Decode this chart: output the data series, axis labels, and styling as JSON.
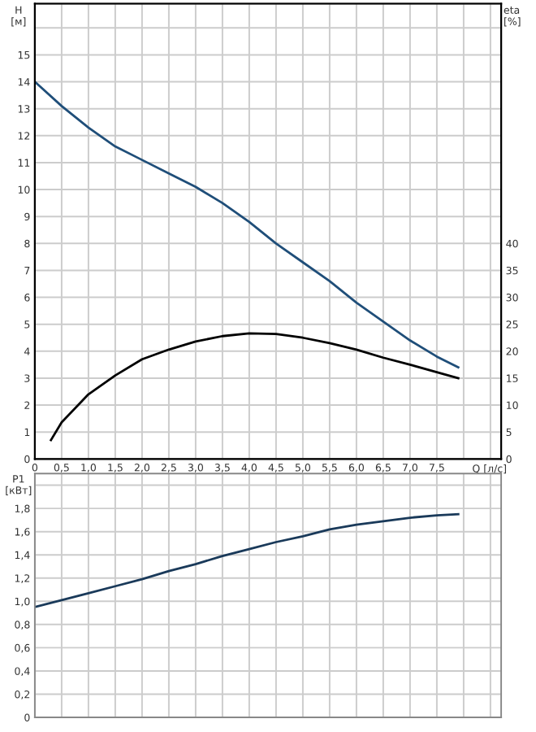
{
  "chart_data": [
    {
      "type": "line",
      "xlabel": "Q [л/с]",
      "ylabel": "H [м]",
      "y2label": "eta [%]",
      "grid": true,
      "marker": "none",
      "line_style": "solid",
      "xlim": [
        0,
        8.7
      ],
      "xticks": [
        0,
        {
          "value": 0.5,
          "label": "0,5"
        },
        {
          "value": 1.0,
          "label": "1,0"
        },
        {
          "value": 1.5,
          "label": "1,5"
        },
        {
          "value": 2.0,
          "label": "2,0"
        },
        {
          "value": 2.5,
          "label": "2,5"
        },
        {
          "value": 3.0,
          "label": "3,0"
        },
        {
          "value": 3.5,
          "label": "3,5"
        },
        {
          "value": 4.0,
          "label": "4,0"
        },
        {
          "value": 4.5,
          "label": "4,5"
        },
        {
          "value": 5.0,
          "label": "5,0"
        },
        {
          "value": 5.5,
          "label": "5,5"
        },
        {
          "value": 6.0,
          "label": "6,0"
        },
        {
          "value": 6.5,
          "label": "6,5"
        },
        {
          "value": 7.0,
          "label": "7,0"
        },
        {
          "value": 7.5,
          "label": "7,5"
        },
        {
          "value": 8.0,
          "label": null
        },
        {
          "value": 8.5,
          "label": null
        }
      ],
      "ylim": [
        0,
        16.9
      ],
      "yticks": [
        0,
        1,
        2,
        3,
        4,
        5,
        6,
        7,
        8,
        9,
        10,
        11,
        12,
        13,
        14,
        15,
        {
          "value": 16,
          "label": null
        }
      ],
      "y2lim": [
        0,
        84.5
      ],
      "y2ticks": [
        0,
        5,
        10,
        15,
        20,
        25,
        30,
        35,
        40
      ],
      "series": [
        {
          "color": "#1f4e79",
          "x": [
            0,
            0.5,
            1.0,
            1.5,
            2.0,
            2.5,
            3.0,
            3.5,
            4.0,
            4.5,
            5.0,
            5.5,
            6.0,
            6.5,
            7.0,
            7.5,
            7.9
          ],
          "values": [
            14.0,
            13.1,
            12.3,
            11.6,
            11.1,
            10.6,
            10.1,
            9.5,
            8.8,
            8.0,
            7.3,
            6.6,
            5.8,
            5.1,
            4.4,
            3.8,
            3.4
          ]
        },
        {
          "color": "#000000",
          "axis": "y2",
          "x": [
            0.3,
            0.5,
            1.0,
            1.5,
            2.0,
            2.5,
            3.0,
            3.5,
            4.0,
            4.5,
            5.0,
            5.5,
            6.0,
            6.5,
            7.0,
            7.5,
            7.9
          ],
          "values": [
            3.5,
            6.8,
            12.0,
            15.5,
            18.5,
            20.3,
            21.8,
            22.8,
            23.3,
            23.2,
            22.5,
            21.5,
            20.3,
            18.8,
            17.5,
            16.1,
            15.0
          ]
        }
      ]
    },
    {
      "type": "line",
      "ylabel": "P1 [кВт]",
      "grid": true,
      "marker": "none",
      "line_style": "solid",
      "tick_labels": "y",
      "xlim": [
        0,
        8.7
      ],
      "xticks": [
        0,
        0.5,
        1.0,
        1.5,
        2.0,
        2.5,
        3.0,
        3.5,
        4.0,
        4.5,
        5.0,
        5.5,
        6.0,
        6.5,
        7.0,
        7.5,
        8.0,
        8.5
      ],
      "ylim": [
        0,
        2.1
      ],
      "yticks": [
        0,
        {
          "value": 0.2,
          "label": "0,2"
        },
        {
          "value": 0.4,
          "label": "0,4"
        },
        {
          "value": 0.6,
          "label": "0,6"
        },
        {
          "value": 0.8,
          "label": "0,8"
        },
        {
          "value": 1.0,
          "label": "1,0"
        },
        {
          "value": 1.2,
          "label": "1,2"
        },
        {
          "value": 1.4,
          "label": "1,4"
        },
        {
          "value": 1.6,
          "label": "1,6"
        },
        {
          "value": 1.8,
          "label": "1,8"
        },
        {
          "value": 2.0,
          "label": null
        }
      ],
      "series": [
        {
          "color": "#1a3a5a",
          "x": [
            0,
            0.5,
            1.0,
            1.5,
            2.0,
            2.5,
            3.0,
            3.5,
            4.0,
            4.5,
            5.0,
            5.5,
            6.0,
            6.5,
            7.0,
            7.5,
            7.9
          ],
          "values": [
            0.95,
            1.01,
            1.07,
            1.13,
            1.19,
            1.26,
            1.32,
            1.39,
            1.45,
            1.51,
            1.56,
            1.62,
            1.66,
            1.69,
            1.72,
            1.74,
            1.75
          ]
        }
      ]
    }
  ]
}
